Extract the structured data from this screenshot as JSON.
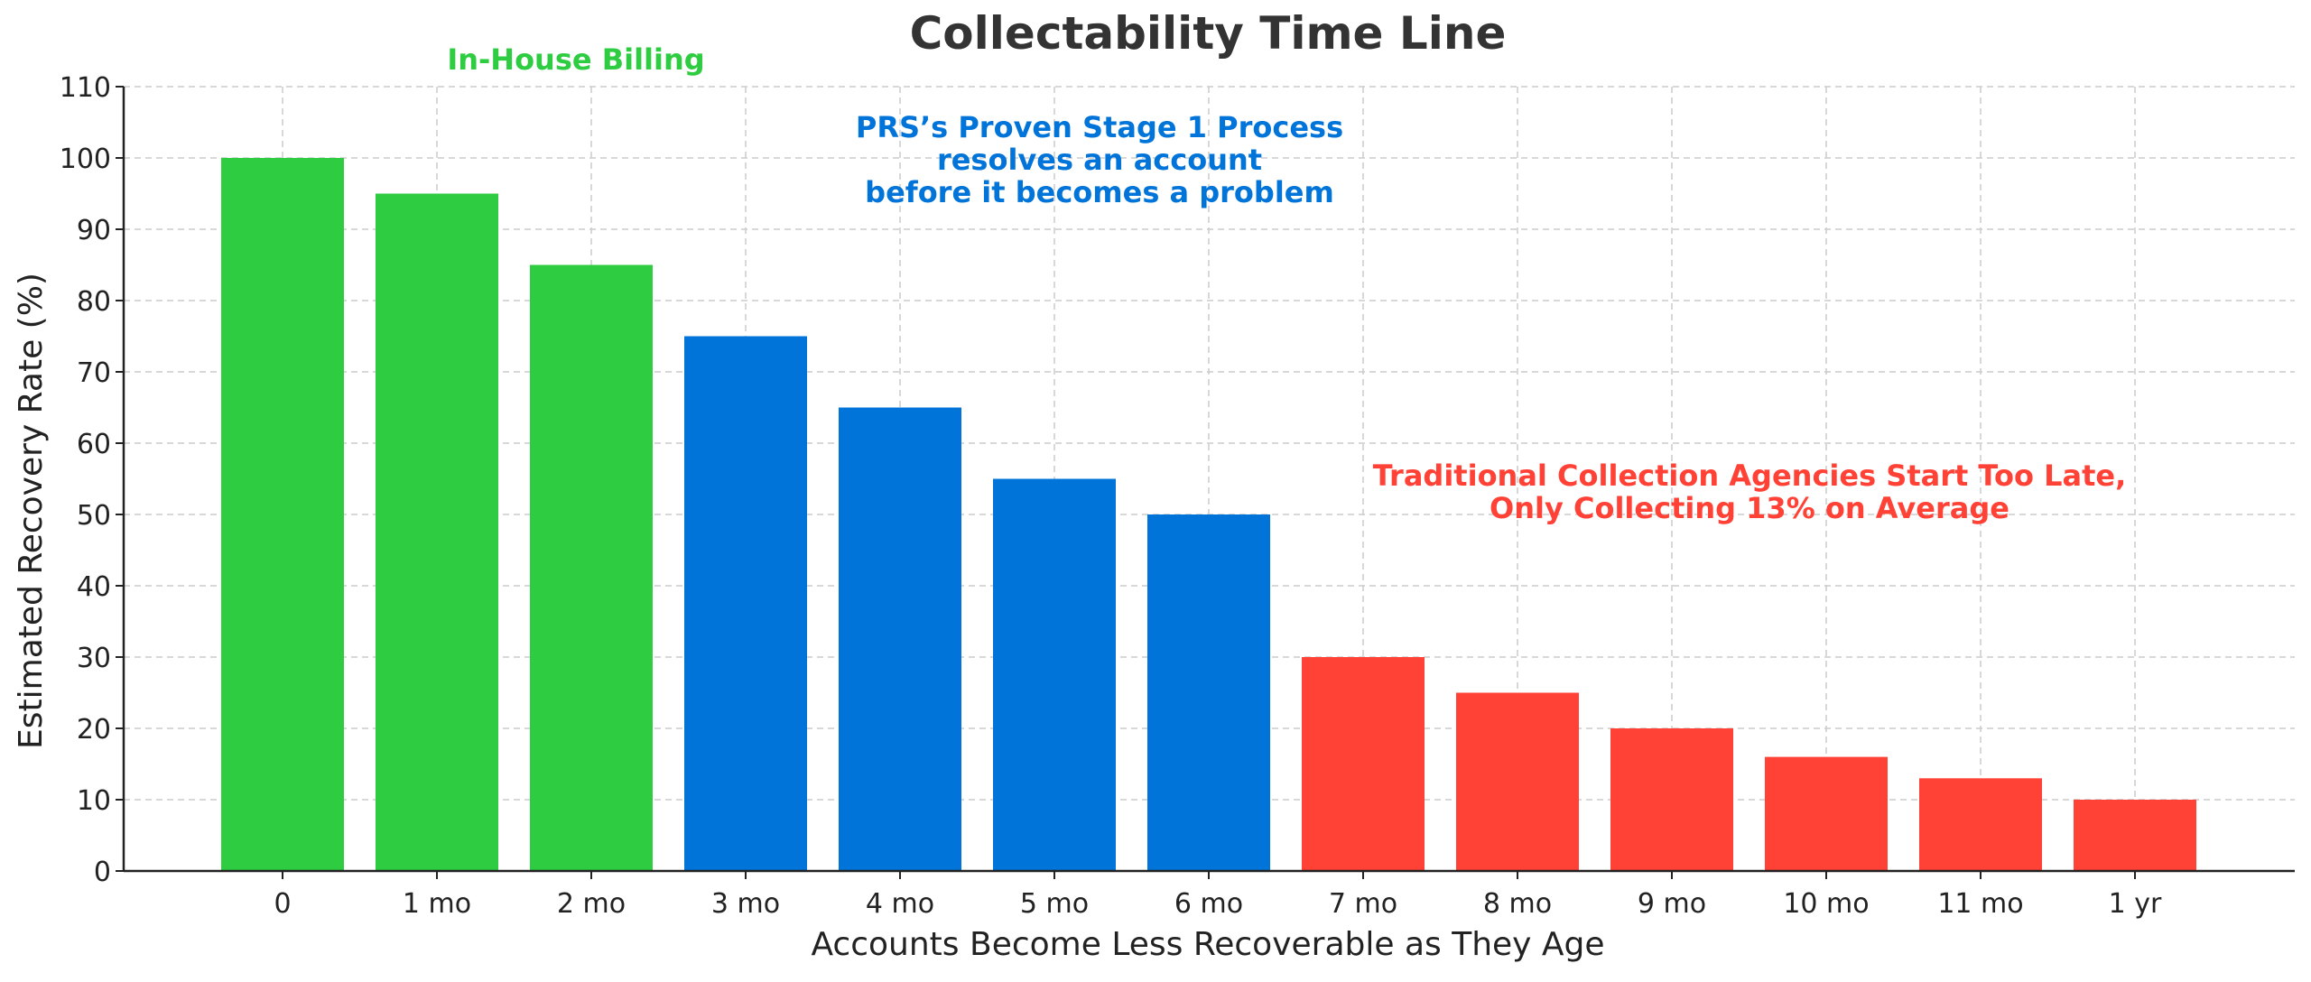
{
  "chart_data": {
    "type": "bar",
    "title": "Collectability Time Line",
    "xlabel": "Accounts Become Less Recoverable as They Age",
    "ylabel": "Estimated Recovery Rate (%)",
    "ylim": [
      0,
      110
    ],
    "yticks": [
      0,
      10,
      20,
      30,
      40,
      50,
      60,
      70,
      80,
      90,
      100,
      110
    ],
    "grid": true,
    "categories": [
      "0",
      "1 mo",
      "2 mo",
      "3 mo",
      "4 mo",
      "5 mo",
      "6 mo",
      "7 mo",
      "8 mo",
      "9 mo",
      "10 mo",
      "11 mo",
      "1 yr"
    ],
    "values": [
      100,
      95,
      85,
      75,
      65,
      55,
      50,
      30,
      25,
      20,
      16,
      13,
      10
    ],
    "bar_colors": [
      "#2ecc40",
      "#2ecc40",
      "#2ecc40",
      "#0074d9",
      "#0074d9",
      "#0074d9",
      "#0074d9",
      "#ff4136",
      "#ff4136",
      "#ff4136",
      "#ff4136",
      "#ff4136",
      "#ff4136"
    ],
    "annotations": [
      {
        "id": "in-house",
        "lines": [
          "In-House Billing"
        ],
        "color": "#2ecc40"
      },
      {
        "id": "prs",
        "lines": [
          "PRS’s Proven Stage 1 Process",
          "resolves an account",
          "before it becomes a problem"
        ],
        "color": "#0074d9"
      },
      {
        "id": "traditional",
        "lines": [
          "Traditional Collection Agencies Start Too Late,",
          "Only Collecting 13% on Average"
        ],
        "color": "#ff4136"
      }
    ]
  }
}
